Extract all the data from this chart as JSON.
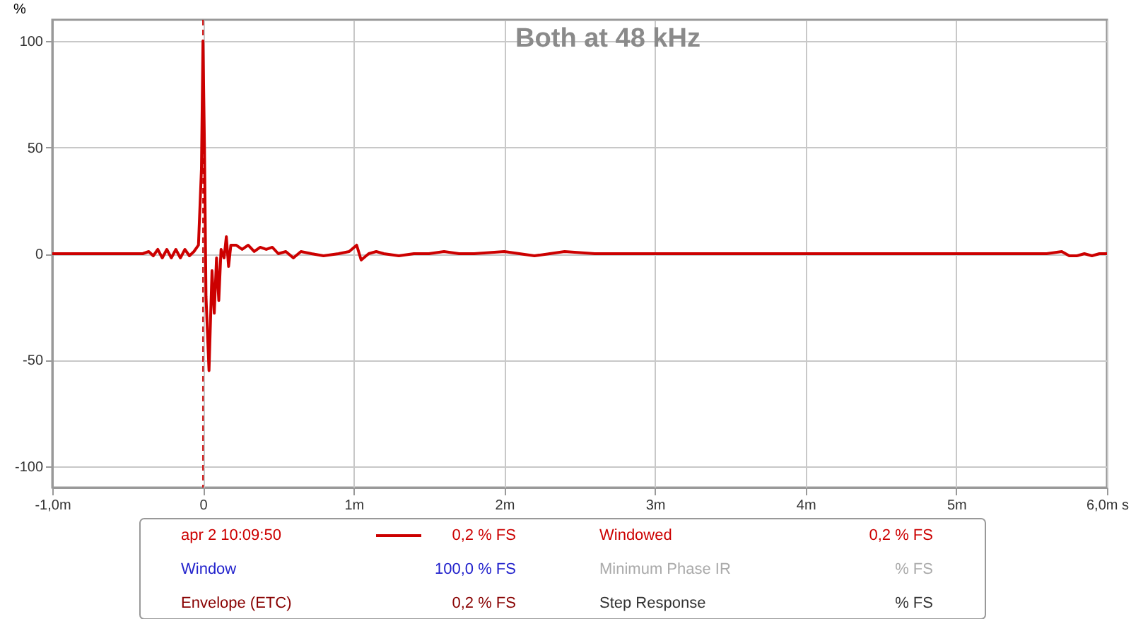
{
  "chart_data": {
    "type": "line",
    "title": "Both at 48 kHz",
    "ylabel": "%",
    "xlim": [
      -1,
      6
    ],
    "ylim": [
      -110,
      110
    ],
    "xticks": [
      {
        "value": -1,
        "label": "-1,0m"
      },
      0,
      {
        "value": 1,
        "label": "1m"
      },
      {
        "value": 2,
        "label": "2m"
      },
      {
        "value": 3,
        "label": "3m"
      },
      {
        "value": 4,
        "label": "4m"
      },
      {
        "value": 5,
        "label": "5m"
      },
      {
        "value": 6,
        "label": "6,0m s"
      }
    ],
    "yticks": [
      -100,
      -50,
      0,
      50,
      100
    ],
    "grid": true,
    "legend": "bottom",
    "line_style": "solid",
    "ref_lines": [
      {
        "axis": "x",
        "value": 0,
        "color": "#cc0000",
        "line_style": "dashed"
      }
    ],
    "annotations": [
      "0,2 % FS",
      "Windowed",
      "0,2 % FS",
      "Window",
      "100,0 % FS",
      "Minimum Phase IR",
      "% FS",
      "Envelope (ETC)",
      "0,2 % FS",
      "Step Response",
      "% FS"
    ],
    "series": [
      {
        "name": "apr 2 10:09:50",
        "color": "#cc0000",
        "x": [
          -1,
          -0.5,
          -0.4,
          -0.36,
          -0.33,
          -0.3,
          -0.27,
          -0.24,
          -0.21,
          -0.18,
          -0.15,
          -0.12,
          -0.09,
          -0.06,
          -0.03,
          -0.01,
          0.0,
          0.01,
          0.02,
          0.04,
          0.06,
          0.075,
          0.09,
          0.105,
          0.12,
          0.14,
          0.155,
          0.17,
          0.185,
          0.2,
          0.22,
          0.26,
          0.3,
          0.34,
          0.38,
          0.42,
          0.46,
          0.5,
          0.55,
          0.6,
          0.65,
          0.72,
          0.8,
          0.9,
          0.97,
          1.02,
          1.05,
          1.1,
          1.15,
          1.2,
          1.3,
          1.4,
          1.5,
          1.6,
          1.7,
          1.8,
          2.0,
          2.1,
          2.2,
          2.4,
          2.6,
          2.8,
          3.0,
          3.3,
          3.6,
          4.0,
          4.4,
          4.8,
          5.2,
          5.6,
          5.7,
          5.75,
          5.8,
          5.85,
          5.9,
          5.95,
          6.0
        ],
        "values": [
          0,
          0,
          0,
          1,
          -1,
          2,
          -2,
          2,
          -2,
          2,
          -2,
          2,
          -1,
          1,
          4,
          40,
          100,
          50,
          -20,
          -55,
          -8,
          -28,
          -2,
          -22,
          2,
          -2,
          8,
          -6,
          4,
          4,
          4,
          2,
          4,
          1,
          3,
          2,
          3,
          0,
          1,
          -2,
          1,
          0,
          -1,
          0,
          1,
          4,
          -3,
          0,
          1,
          0,
          -1,
          0,
          0,
          1,
          0,
          0,
          1,
          0,
          -1,
          1,
          0,
          0,
          0,
          0,
          0,
          0,
          0,
          0,
          0,
          0,
          1,
          -1,
          -1,
          0,
          -1,
          0,
          0
        ]
      }
    ]
  }
}
